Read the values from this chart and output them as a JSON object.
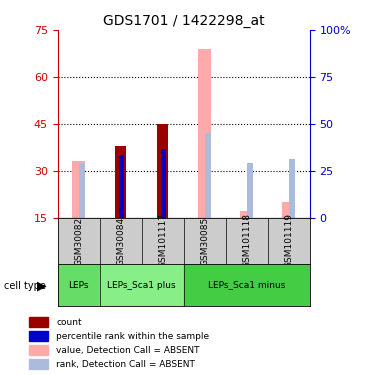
{
  "title": "GDS1701 / 1422298_at",
  "samples": [
    "GSM30082",
    "GSM30084",
    "GSM101117",
    "GSM30085",
    "GSM101118",
    "GSM101119"
  ],
  "ylim_left": [
    15,
    75
  ],
  "ylim_right": [
    0,
    100
  ],
  "yticks_left": [
    15,
    30,
    45,
    60,
    75
  ],
  "yticks_right": [
    0,
    25,
    50,
    75,
    100
  ],
  "ytick_labels_left": [
    "15",
    "30",
    "45",
    "60",
    "75"
  ],
  "ytick_labels_right": [
    "0",
    "25",
    "50",
    "75",
    "100%"
  ],
  "red_bars": [
    0,
    38,
    45,
    0,
    0,
    0
  ],
  "blue_bars": [
    0,
    35,
    37,
    0,
    0,
    0
  ],
  "pink_bars": [
    33,
    0,
    0,
    69,
    17,
    20
  ],
  "light_blue_bars": [
    29,
    0,
    0,
    45,
    29,
    31
  ],
  "cell_types": [
    {
      "label": "LEPs",
      "start": 0,
      "end": 1,
      "color": "#66dd66"
    },
    {
      "label": "LEPs_Sca1 plus",
      "start": 1,
      "end": 3,
      "color": "#88ee88"
    },
    {
      "label": "LEPs_Sca1 minus",
      "start": 3,
      "end": 6,
      "color": "#44cc44"
    }
  ],
  "bar_width": 0.35,
  "pink_color": "#ffaaaa",
  "light_blue_color": "#aabbdd",
  "red_color": "#990000",
  "blue_color": "#0000cc",
  "left_axis_color": "#cc0000",
  "right_axis_color": "#0000cc",
  "bg_color": "#ffffff",
  "plot_bg": "#ffffff",
  "legend_items": [
    {
      "color": "#990000",
      "label": "count"
    },
    {
      "color": "#0000cc",
      "label": "percentile rank within the sample"
    },
    {
      "color": "#ffaaaa",
      "label": "value, Detection Call = ABSENT"
    },
    {
      "color": "#aabbdd",
      "label": "rank, Detection Call = ABSENT"
    }
  ]
}
